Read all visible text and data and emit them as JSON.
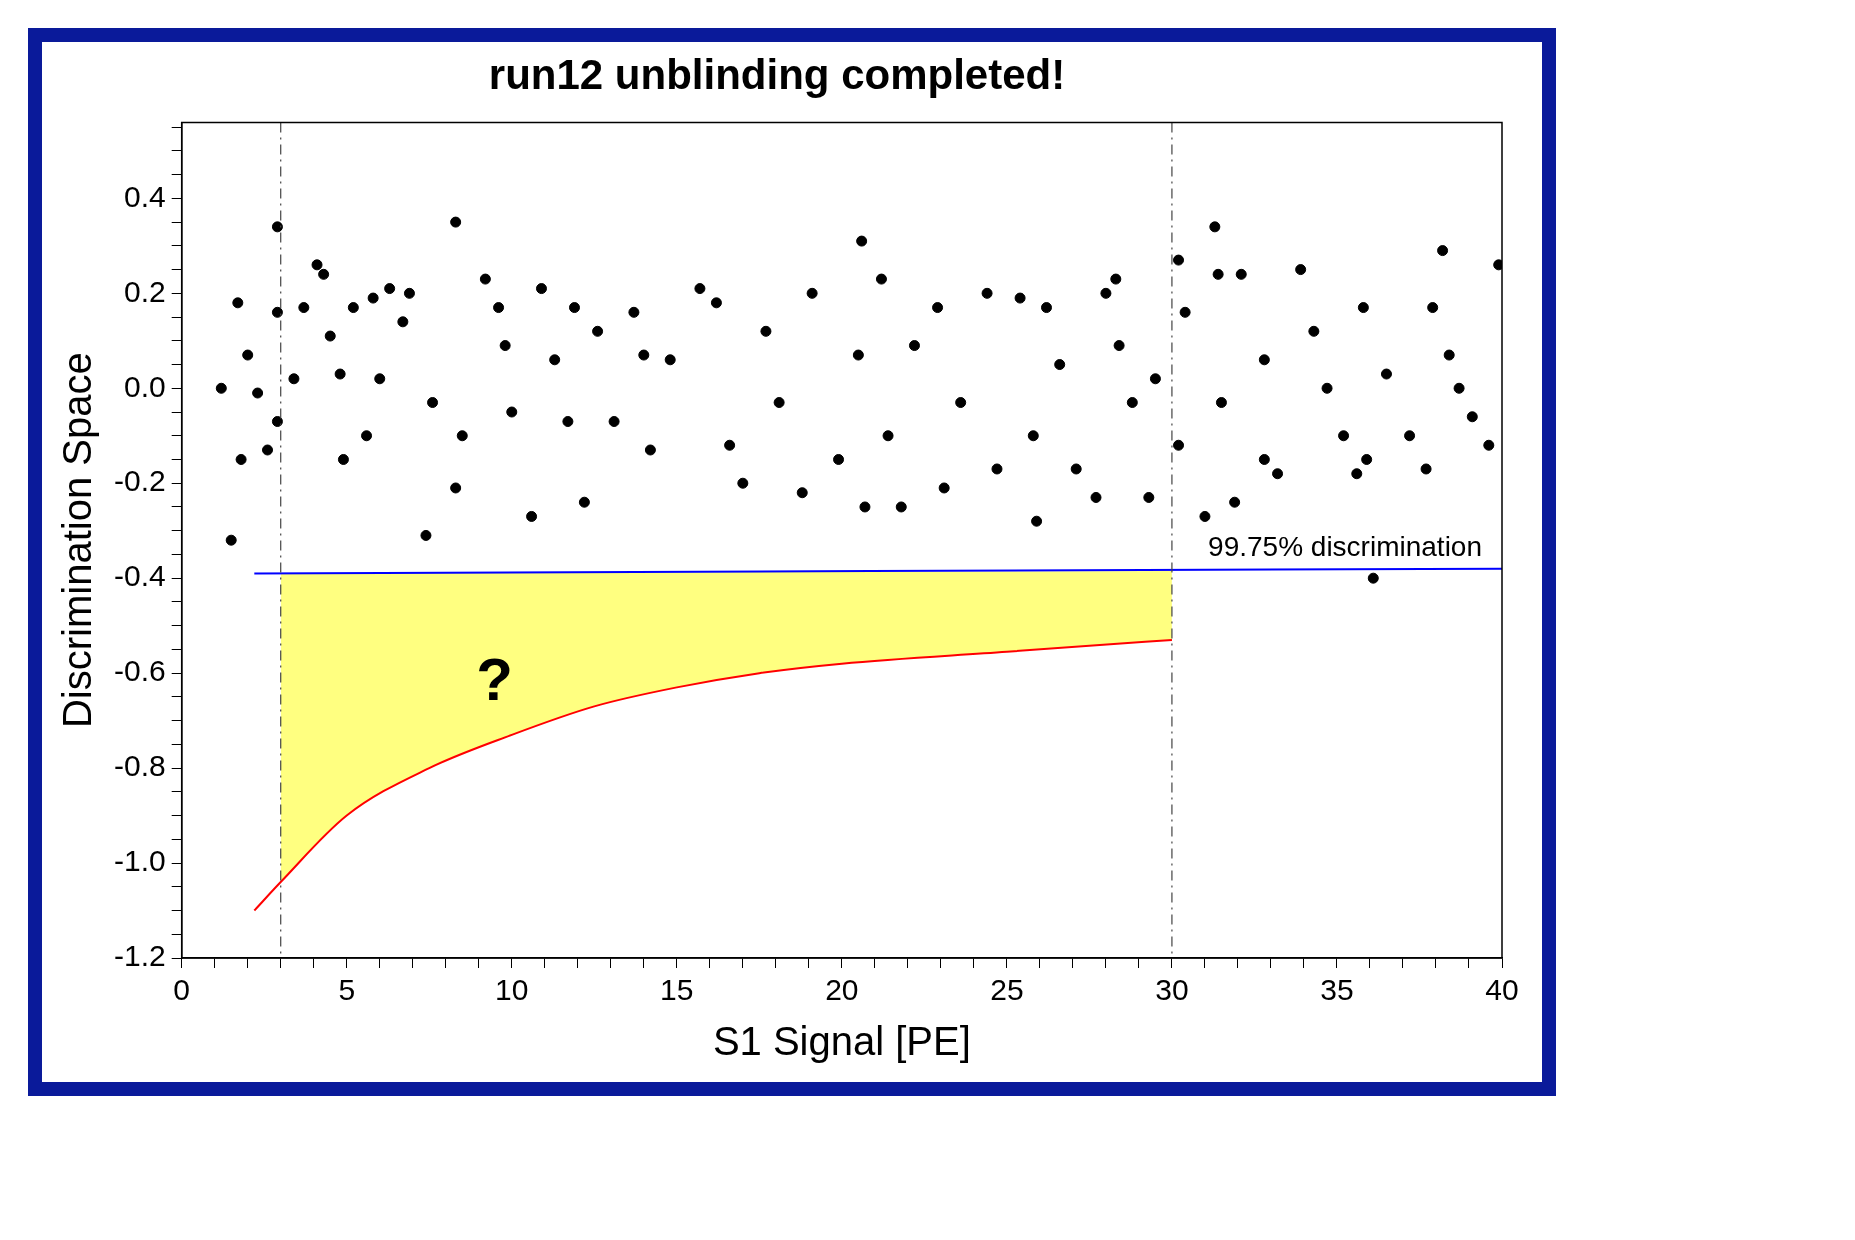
{
  "chart_data": {
    "type": "scatter",
    "title": "run12 unblinding completed!",
    "xlabel": "S1 Signal [PE]",
    "ylabel": "Discrimination Space",
    "xlim": [
      0,
      40
    ],
    "ylim": [
      -1.2,
      0.56
    ],
    "xticks": [
      0,
      {
        "value": 1,
        "label": null
      },
      {
        "value": 2,
        "label": null
      },
      {
        "value": 3,
        "label": null
      },
      {
        "value": 4,
        "label": null
      },
      5,
      {
        "value": 6,
        "label": null
      },
      {
        "value": 7,
        "label": null
      },
      {
        "value": 8,
        "label": null
      },
      {
        "value": 9,
        "label": null
      },
      10,
      {
        "value": 11,
        "label": null
      },
      {
        "value": 12,
        "label": null
      },
      {
        "value": 13,
        "label": null
      },
      {
        "value": 14,
        "label": null
      },
      15,
      {
        "value": 16,
        "label": null
      },
      {
        "value": 17,
        "label": null
      },
      {
        "value": 18,
        "label": null
      },
      {
        "value": 19,
        "label": null
      },
      20,
      {
        "value": 21,
        "label": null
      },
      {
        "value": 22,
        "label": null
      },
      {
        "value": 23,
        "label": null
      },
      {
        "value": 24,
        "label": null
      },
      25,
      {
        "value": 26,
        "label": null
      },
      {
        "value": 27,
        "label": null
      },
      {
        "value": 28,
        "label": null
      },
      {
        "value": 29,
        "label": null
      },
      30,
      {
        "value": 31,
        "label": null
      },
      {
        "value": 32,
        "label": null
      },
      {
        "value": 33,
        "label": null
      },
      {
        "value": 34,
        "label": null
      },
      35,
      {
        "value": 36,
        "label": null
      },
      {
        "value": 37,
        "label": null
      },
      {
        "value": 38,
        "label": null
      },
      {
        "value": 39,
        "label": null
      },
      40
    ],
    "yticks": [
      {
        "value": -1.2,
        "label": "-1.2"
      },
      {
        "value": -1.15,
        "label": null
      },
      {
        "value": -1.1,
        "label": null
      },
      {
        "value": -1.05,
        "label": null
      },
      {
        "value": -1.0,
        "label": "-1.0"
      },
      {
        "value": -0.95,
        "label": null
      },
      {
        "value": -0.9,
        "label": null
      },
      {
        "value": -0.85,
        "label": null
      },
      {
        "value": -0.8,
        "label": "-0.8"
      },
      {
        "value": -0.75,
        "label": null
      },
      {
        "value": -0.7,
        "label": null
      },
      {
        "value": -0.65,
        "label": null
      },
      {
        "value": -0.6,
        "label": "-0.6"
      },
      {
        "value": -0.55,
        "label": null
      },
      {
        "value": -0.5,
        "label": null
      },
      {
        "value": -0.45,
        "label": null
      },
      {
        "value": -0.4,
        "label": "-0.4"
      },
      {
        "value": -0.35,
        "label": null
      },
      {
        "value": -0.3,
        "label": null
      },
      {
        "value": -0.25,
        "label": null
      },
      {
        "value": -0.2,
        "label": "-0.2"
      },
      {
        "value": -0.15,
        "label": null
      },
      {
        "value": -0.1,
        "label": null
      },
      {
        "value": -0.05,
        "label": null
      },
      {
        "value": 0,
        "label": "0.0"
      },
      {
        "value": 0.05,
        "label": null
      },
      {
        "value": 0.1,
        "label": null
      },
      {
        "value": 0.15,
        "label": null
      },
      {
        "value": 0.2,
        "label": "0.2"
      },
      {
        "value": 0.25,
        "label": null
      },
      {
        "value": 0.3,
        "label": null
      },
      {
        "value": 0.35,
        "label": null
      },
      {
        "value": 0.4,
        "label": "0.4"
      },
      {
        "value": 0.45,
        "label": null
      },
      {
        "value": 0.5,
        "label": null
      },
      {
        "value": 0.55,
        "label": null
      }
    ],
    "grid": false,
    "legend": false,
    "series": [
      {
        "color": "#000000",
        "marker": "circle",
        "x": [
          1.2,
          1.5,
          1.7,
          1.8,
          2.0,
          2.3,
          2.6,
          2.9,
          2.9,
          2.9,
          3.4,
          3.7,
          4.1,
          4.3,
          4.5,
          4.8,
          4.9,
          5.2,
          5.6,
          5.8,
          6.0,
          6.3,
          6.7,
          6.9,
          7.4,
          7.6,
          8.3,
          8.3,
          8.5,
          9.2,
          9.6,
          9.8,
          10.0,
          10.6,
          10.9,
          11.3,
          11.7,
          11.9,
          12.2,
          12.6,
          13.1,
          13.7,
          14.0,
          14.2,
          14.8,
          15.7,
          16.2,
          16.6,
          17.0,
          17.7,
          18.1,
          18.8,
          19.1,
          19.9,
          20.6,
          20.5,
          20.7,
          21.2,
          21.4,
          21.8,
          22.2,
          22.9,
          23.1,
          23.6,
          24.4,
          24.7,
          25.4,
          25.8,
          25.9,
          26.2,
          26.6,
          27.1,
          27.7,
          28.0,
          28.3,
          28.4,
          28.8,
          29.3,
          29.5,
          30.2,
          30.2,
          30.4,
          31.0,
          31.3,
          31.4,
          31.5,
          31.9,
          32.1,
          32.8,
          32.8,
          33.2,
          33.9,
          34.3,
          34.7,
          35.2,
          35.6,
          35.8,
          35.9,
          36.1,
          36.5,
          37.2,
          37.7,
          37.9,
          38.2,
          38.4,
          38.7,
          39.1,
          39.6,
          39.9
        ],
        "values": [
          0.0,
          -0.32,
          0.18,
          -0.15,
          0.07,
          -0.01,
          -0.13,
          0.34,
          0.16,
          -0.07,
          0.02,
          0.17,
          0.26,
          0.24,
          0.11,
          0.03,
          -0.15,
          0.17,
          -0.1,
          0.19,
          0.02,
          0.21,
          0.14,
          0.2,
          -0.31,
          -0.03,
          0.35,
          -0.21,
          -0.1,
          0.23,
          0.17,
          0.09,
          -0.05,
          -0.27,
          0.21,
          0.06,
          -0.07,
          0.17,
          -0.24,
          0.12,
          -0.07,
          0.16,
          0.07,
          -0.13,
          0.06,
          0.21,
          0.18,
          -0.12,
          -0.2,
          0.12,
          -0.03,
          -0.22,
          0.2,
          -0.15,
          0.31,
          0.07,
          -0.25,
          0.23,
          -0.1,
          -0.25,
          0.09,
          0.17,
          -0.21,
          -0.03,
          0.2,
          -0.17,
          0.19,
          -0.1,
          -0.28,
          0.17,
          0.05,
          -0.17,
          -0.23,
          0.2,
          0.23,
          0.09,
          -0.03,
          -0.23,
          0.02,
          0.27,
          -0.12,
          0.16,
          -0.27,
          0.34,
          0.24,
          -0.03,
          -0.24,
          0.24,
          -0.15,
          0.06,
          -0.18,
          0.25,
          0.12,
          0.0,
          -0.1,
          -0.18,
          0.17,
          -0.15,
          -0.4,
          0.03,
          -0.1,
          -0.17,
          0.17,
          0.29,
          0.07,
          0.0,
          -0.06,
          -0.12,
          0.26
        ]
      },
      {
        "type": "line",
        "color": "#ff0000",
        "x": [
          2.2,
          3,
          5,
          7.5,
          10,
          12.5,
          15,
          17.5,
          20,
          25,
          30
        ],
        "values": [
          -1.1,
          -1.04,
          -0.9,
          -0.8,
          -0.73,
          -0.67,
          -0.63,
          -0.6,
          -0.58,
          -0.555,
          -0.53
        ],
        "lower": [
          null,
          -1.04,
          -0.9,
          -0.8,
          -0.73,
          -0.67,
          -0.63,
          -0.6,
          -0.58,
          -0.555,
          -0.53
        ],
        "upper": [
          null,
          -0.39,
          -0.39,
          -0.389,
          -0.389,
          -0.388,
          -0.388,
          -0.387,
          -0.387,
          -0.386,
          -0.385
        ]
      },
      {
        "type": "line",
        "color": "#0000ff",
        "x": [
          2.2,
          40
        ],
        "values": [
          -0.39,
          -0.38
        ]
      }
    ],
    "ref_lines": [
      {
        "axis": "x",
        "value": 3,
        "color": "#444444",
        "line_style": "dashed"
      },
      {
        "axis": "x",
        "value": 30,
        "color": "#444444",
        "line_style": "dashed"
      }
    ],
    "annotations": [
      "?",
      "99.75% discrimination"
    ]
  }
}
